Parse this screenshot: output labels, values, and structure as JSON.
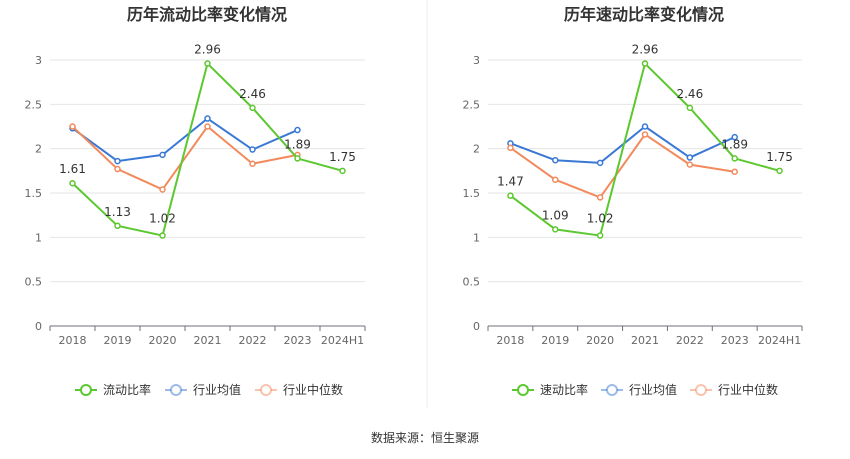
{
  "colors": {
    "company": "#5cc82f",
    "average": "#3a78d6",
    "median": "#f28a5c",
    "grid": "#e6e6e6",
    "axis": "#6e7079"
  },
  "source_text": "数据来源：恒生聚源",
  "chart_data": [
    {
      "type": "line",
      "title": "历年流动比率变化情况",
      "categories": [
        "2018",
        "2019",
        "2020",
        "2021",
        "2022",
        "2023",
        "2024H1"
      ],
      "ylim": [
        0,
        3
      ],
      "yticks": [
        "0",
        "0.5",
        "1",
        "1.5",
        "2",
        "2.5",
        "3"
      ],
      "grid": true,
      "legend_position": "bottom",
      "series": [
        {
          "name": "流动比率",
          "color": "#5cc82f",
          "values": [
            1.61,
            1.13,
            1.02,
            2.96,
            2.46,
            1.89,
            1.75
          ],
          "labels": [
            "1.61",
            "1.13",
            "1.02",
            "2.96",
            "2.46",
            "1.89",
            "1.75"
          ]
        },
        {
          "name": "行业均值",
          "color": "#3a78d6",
          "values": [
            2.23,
            1.86,
            1.93,
            2.34,
            1.99,
            2.21,
            null
          ]
        },
        {
          "name": "行业中位数",
          "color": "#f28a5c",
          "values": [
            2.25,
            1.77,
            1.54,
            2.25,
            1.83,
            1.93,
            null
          ]
        }
      ]
    },
    {
      "type": "line",
      "title": "历年速动比率变化情况",
      "categories": [
        "2018",
        "2019",
        "2020",
        "2021",
        "2022",
        "2023",
        "2024H1"
      ],
      "ylim": [
        0,
        3
      ],
      "yticks": [
        "0",
        "0.5",
        "1",
        "1.5",
        "2",
        "2.5",
        "3"
      ],
      "grid": true,
      "legend_position": "bottom",
      "series": [
        {
          "name": "速动比率",
          "color": "#5cc82f",
          "values": [
            1.47,
            1.09,
            1.02,
            2.96,
            2.46,
            1.89,
            1.75
          ],
          "labels": [
            "1.47",
            "1.09",
            "1.02",
            "2.96",
            "2.46",
            "1.89",
            "1.75"
          ]
        },
        {
          "name": "行业均值",
          "color": "#3a78d6",
          "values": [
            2.06,
            1.87,
            1.84,
            2.25,
            1.9,
            2.13,
            null
          ]
        },
        {
          "name": "行业中位数",
          "color": "#f28a5c",
          "values": [
            2.01,
            1.65,
            1.45,
            2.16,
            1.82,
            1.74,
            null
          ]
        }
      ]
    }
  ]
}
